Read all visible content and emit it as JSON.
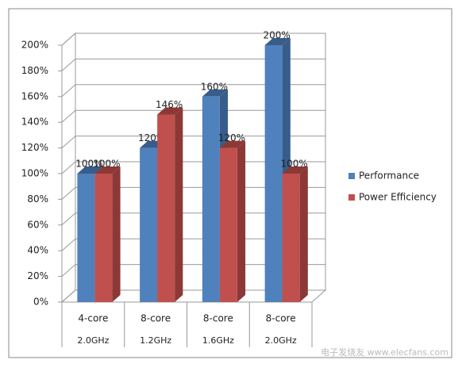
{
  "chart_data": {
    "type": "bar3d",
    "categories": [
      "4-core",
      "8-core",
      "8-core",
      "8-core"
    ],
    "subcategories": [
      "2.0GHz",
      "1.2GHz",
      "1.6GHz",
      "2.0GHz"
    ],
    "series": [
      {
        "name": "Performance",
        "color": "#4f81bd",
        "side_color": "#385d8a",
        "values": [
          100,
          120,
          160,
          200
        ],
        "value_labels": [
          "100%",
          "120%",
          "160%",
          "200%"
        ]
      },
      {
        "name": "Power Efficiency",
        "color": "#c0504d",
        "side_color": "#8c3836",
        "values": [
          100,
          146,
          120,
          100
        ],
        "value_labels": [
          "100%",
          "146%",
          "120%",
          "100%"
        ]
      }
    ],
    "ylim": [
      0,
      200
    ],
    "yticks": [
      {
        "value": 0,
        "label": "0%"
      },
      {
        "value": 20,
        "label": "20%"
      },
      {
        "value": 40,
        "label": "40%"
      },
      {
        "value": 60,
        "label": "60%"
      },
      {
        "value": 80,
        "label": "80%"
      },
      {
        "value": 100,
        "label": "100%"
      },
      {
        "value": 120,
        "label": "120%"
      },
      {
        "value": 140,
        "label": "140%"
      },
      {
        "value": 160,
        "label": "160%"
      },
      {
        "value": 180,
        "label": "180%"
      },
      {
        "value": 200,
        "label": "200%"
      }
    ],
    "grid": true,
    "legend": "right",
    "watermark": "电子发烧友 www.elecfans.com"
  }
}
